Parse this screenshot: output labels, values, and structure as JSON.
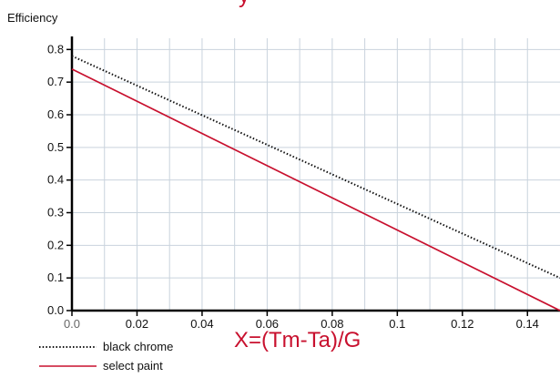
{
  "chart_data": {
    "type": "line",
    "title": "y",
    "ylabel": "Efficiency",
    "xlabel": "X=(Tm-Ta)/G",
    "xlim": [
      0,
      0.15
    ],
    "ylim": [
      0,
      0.84
    ],
    "x_ticks": [
      "0.0",
      "0.02",
      "0.04",
      "0.06",
      "0.08",
      "0.1",
      "0.12",
      "0.14"
    ],
    "y_ticks": [
      "0.0",
      "0.1",
      "0.2",
      "0.3",
      "0.4",
      "0.5",
      "0.6",
      "0.7",
      "0.8"
    ],
    "grid": true,
    "legend_position": "bottom-left",
    "series": [
      {
        "name": "black chrome",
        "color": "#111111",
        "style": "dotted",
        "x": [
          0,
          0.15
        ],
        "y": [
          0.78,
          0.1
        ]
      },
      {
        "name": "select paint",
        "color": "#c8102e",
        "style": "solid",
        "x": [
          0,
          0.15
        ],
        "y": [
          0.74,
          0.0
        ]
      }
    ]
  },
  "colors": {
    "axis": "#000000",
    "grid": "#c9d3dd",
    "x_tick_zero": "#666666",
    "label_red": "#c8102e"
  }
}
